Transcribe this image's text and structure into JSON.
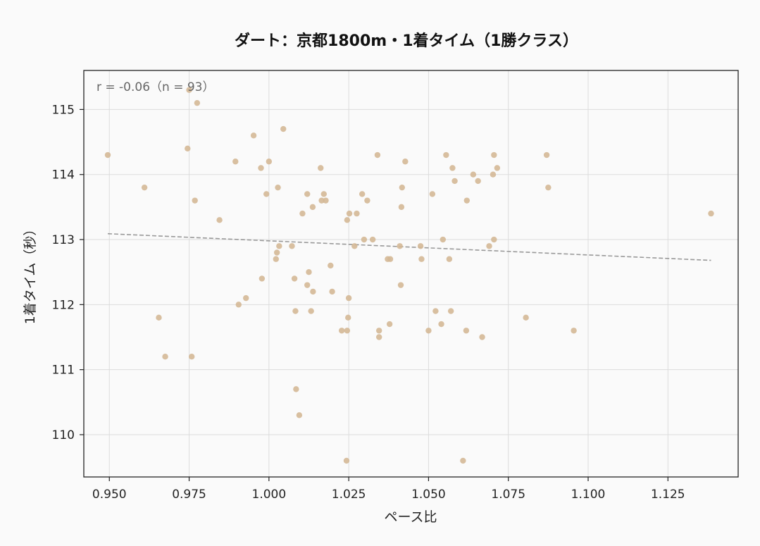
{
  "chart_data": {
    "type": "scatter",
    "title": "ダート：京都1800m・1着タイム（1勝クラス）",
    "xlabel": "ペース比",
    "ylabel": "1着タイム（秒）",
    "annotation": "r = -0.06（n = 93）",
    "xlim": [
      0.942,
      1.147
    ],
    "ylim": [
      109.35,
      115.6
    ],
    "xticks": [
      0.95,
      0.975,
      1.0,
      1.025,
      1.05,
      1.075,
      1.1,
      1.125
    ],
    "xtick_labels": [
      "0.950",
      "0.975",
      "1.000",
      "1.025",
      "1.050",
      "1.075",
      "1.100",
      "1.125"
    ],
    "yticks": [
      110,
      111,
      112,
      113,
      114,
      115
    ],
    "ytick_labels": [
      "110",
      "111",
      "112",
      "113",
      "114",
      "115"
    ],
    "grid": true,
    "point_color": "#d4b896",
    "trend_color": "#999999",
    "trend_line": {
      "x": [
        0.9495,
        1.1385
      ],
      "y": [
        113.09,
        112.68
      ]
    },
    "points": [
      [
        0.9495,
        114.3
      ],
      [
        0.961,
        113.8
      ],
      [
        0.9655,
        111.8
      ],
      [
        0.9675,
        111.2
      ],
      [
        0.9745,
        114.4
      ],
      [
        0.975,
        115.3
      ],
      [
        0.9758,
        111.2
      ],
      [
        0.9768,
        113.6
      ],
      [
        0.9775,
        115.1
      ],
      [
        0.9845,
        113.3
      ],
      [
        0.9895,
        114.2
      ],
      [
        0.9905,
        112.0
      ],
      [
        0.9928,
        112.1
      ],
      [
        0.9952,
        114.6
      ],
      [
        0.9975,
        114.1
      ],
      [
        0.9978,
        112.4
      ],
      [
        0.9992,
        113.7
      ],
      [
        1.0,
        114.2
      ],
      [
        1.0022,
        112.7
      ],
      [
        1.0025,
        112.8
      ],
      [
        1.0028,
        113.8
      ],
      [
        1.0032,
        112.9
      ],
      [
        1.0045,
        114.7
      ],
      [
        1.0072,
        112.9
      ],
      [
        1.008,
        112.4
      ],
      [
        1.0083,
        111.9
      ],
      [
        1.0085,
        110.7
      ],
      [
        1.0095,
        110.3
      ],
      [
        1.0105,
        113.4
      ],
      [
        1.012,
        113.7
      ],
      [
        1.012,
        112.3
      ],
      [
        1.0125,
        112.5
      ],
      [
        1.0132,
        111.9
      ],
      [
        1.0137,
        113.5
      ],
      [
        1.0138,
        112.2
      ],
      [
        1.0162,
        114.1
      ],
      [
        1.0165,
        113.6
      ],
      [
        1.0172,
        113.7
      ],
      [
        1.0178,
        113.6
      ],
      [
        1.0193,
        112.6
      ],
      [
        1.0198,
        112.2
      ],
      [
        1.0228,
        111.6
      ],
      [
        1.0243,
        109.6
      ],
      [
        1.0245,
        111.6
      ],
      [
        1.0245,
        113.3
      ],
      [
        1.0248,
        111.8
      ],
      [
        1.025,
        112.1
      ],
      [
        1.0252,
        113.4
      ],
      [
        1.0268,
        112.9
      ],
      [
        1.0275,
        113.4
      ],
      [
        1.0292,
        113.7
      ],
      [
        1.0298,
        113.0
      ],
      [
        1.0308,
        113.6
      ],
      [
        1.0325,
        113.0
      ],
      [
        1.034,
        114.3
      ],
      [
        1.0345,
        111.6
      ],
      [
        1.0345,
        111.5
      ],
      [
        1.0372,
        112.7
      ],
      [
        1.0378,
        111.7
      ],
      [
        1.038,
        112.7
      ],
      [
        1.041,
        112.9
      ],
      [
        1.0413,
        112.3
      ],
      [
        1.0415,
        113.5
      ],
      [
        1.0417,
        113.8
      ],
      [
        1.0427,
        114.2
      ],
      [
        1.0475,
        112.9
      ],
      [
        1.0478,
        112.7
      ],
      [
        1.05,
        111.6
      ],
      [
        1.0512,
        113.7
      ],
      [
        1.0522,
        111.9
      ],
      [
        1.054,
        111.7
      ],
      [
        1.0545,
        113.0
      ],
      [
        1.0555,
        114.3
      ],
      [
        1.0565,
        112.7
      ],
      [
        1.057,
        111.9
      ],
      [
        1.0575,
        114.1
      ],
      [
        1.0582,
        113.9
      ],
      [
        1.0608,
        109.6
      ],
      [
        1.0618,
        111.6
      ],
      [
        1.062,
        113.6
      ],
      [
        1.064,
        114.0
      ],
      [
        1.0655,
        113.9
      ],
      [
        1.0668,
        111.5
      ],
      [
        1.069,
        112.9
      ],
      [
        1.0702,
        114.0
      ],
      [
        1.0705,
        114.3
      ],
      [
        1.0705,
        113.0
      ],
      [
        1.0715,
        114.1
      ],
      [
        1.0805,
        111.8
      ],
      [
        1.087,
        114.3
      ],
      [
        1.0875,
        113.8
      ],
      [
        1.0955,
        111.6
      ],
      [
        1.1385,
        113.4
      ]
    ]
  }
}
